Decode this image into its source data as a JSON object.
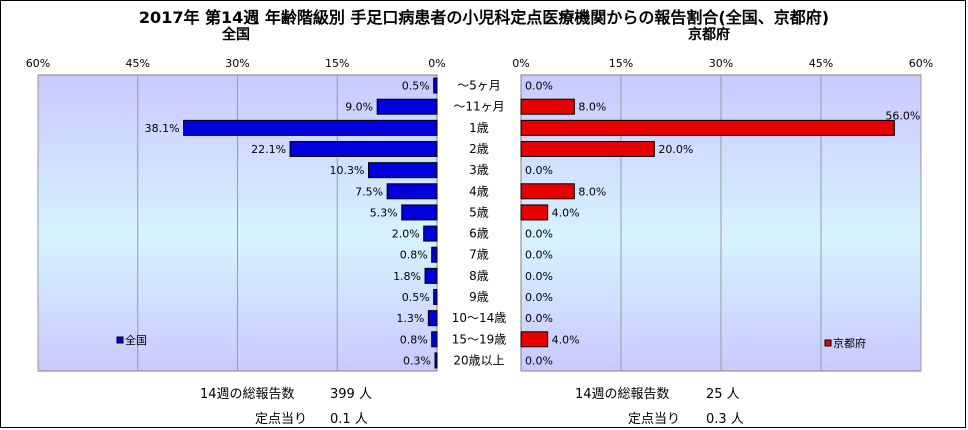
{
  "title": "2017年 第14週 年齢階級別 手足口病患者の小児科定点医療機関からの報告割合(全国、京都府)",
  "colors": {
    "national_bar": "#0000dd",
    "kyoto_bar": "#e60000"
  },
  "chart_data": [
    {
      "type": "bar",
      "orientation": "horizontal",
      "title": "全国",
      "legend": "全国",
      "legend_position": "bottom-left",
      "xlim": [
        0,
        60
      ],
      "xticks": [
        "60%",
        "45%",
        "30%",
        "15%",
        "0%"
      ],
      "reversed": true,
      "categories": [
        "～5ヶ月",
        "～11ヶ月",
        "1歳",
        "2歳",
        "3歳",
        "4歳",
        "5歳",
        "6歳",
        "7歳",
        "8歳",
        "9歳",
        "10～14歳",
        "15～19歳",
        "20歳以上"
      ],
      "values": [
        0.5,
        9.0,
        38.1,
        22.1,
        10.3,
        7.5,
        5.3,
        2.0,
        0.8,
        1.8,
        0.5,
        1.3,
        0.8,
        0.3
      ],
      "labels": [
        "0.5%",
        "9.0%",
        "38.1%",
        "22.1%",
        "10.3%",
        "7.5%",
        "5.3%",
        "2.0%",
        "0.8%",
        "1.8%",
        "0.5%",
        "1.3%",
        "0.8%",
        "0.3%"
      ]
    },
    {
      "type": "bar",
      "orientation": "horizontal",
      "title": "京都府",
      "legend": "京都府",
      "legend_position": "bottom-right",
      "xlim": [
        0,
        60
      ],
      "xticks": [
        "0%",
        "15%",
        "30%",
        "45%",
        "60%"
      ],
      "reversed": false,
      "categories": [
        "～5ヶ月",
        "～11ヶ月",
        "1歳",
        "2歳",
        "3歳",
        "4歳",
        "5歳",
        "6歳",
        "7歳",
        "8歳",
        "9歳",
        "10～14歳",
        "15～19歳",
        "20歳以上"
      ],
      "values": [
        0.0,
        8.0,
        56.0,
        20.0,
        0.0,
        8.0,
        4.0,
        0.0,
        0.0,
        0.0,
        0.0,
        0.0,
        4.0,
        0.0
      ],
      "labels": [
        "0.0%",
        "8.0%",
        "56.0%",
        "20.0%",
        "0.0%",
        "8.0%",
        "4.0%",
        "0.0%",
        "0.0%",
        "0.0%",
        "0.0%",
        "0.0%",
        "4.0%",
        "0.0%"
      ]
    }
  ],
  "footer": {
    "national": {
      "total_label": "14週の総報告数",
      "total_value": "399 人",
      "per_label": "定点当り",
      "per_value": "0.1 人"
    },
    "kyoto": {
      "total_label": "14週の総報告数",
      "total_value": "25 人",
      "per_label": "定点当り",
      "per_value": "0.3 人"
    }
  }
}
